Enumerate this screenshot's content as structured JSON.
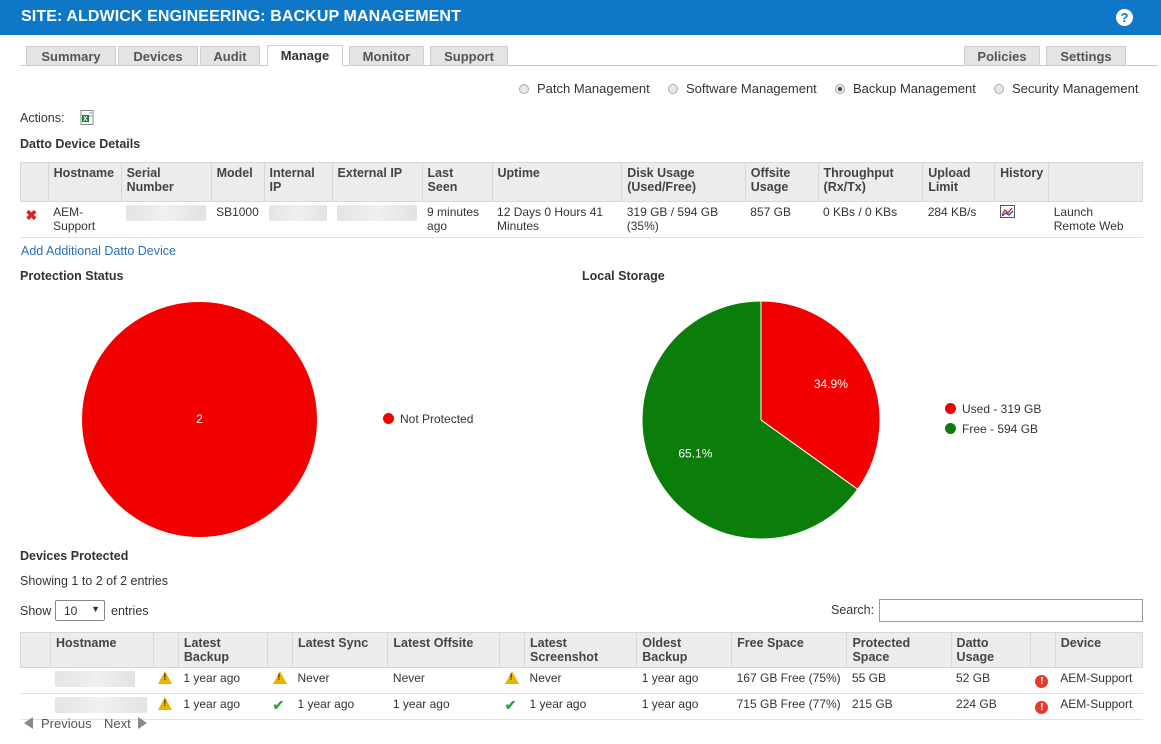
{
  "header": {
    "title": "SITE: ALDWICK ENGINEERING: BACKUP MANAGEMENT",
    "help": "?"
  },
  "tabs": [
    "Summary",
    "Devices",
    "Audit",
    "Manage",
    "Monitor",
    "Support"
  ],
  "right_tabs": [
    "Policies",
    "Settings"
  ],
  "active_tab": "Manage",
  "management_options": [
    "Patch Management",
    "Software Management",
    "Backup Management",
    "Security Management"
  ],
  "selected_management": "Backup Management",
  "actions_label": "Actions:",
  "datto_section": {
    "title": "Datto Device Details",
    "columns": [
      "Hostname",
      "Serial Number",
      "Model",
      "Internal IP",
      "External IP",
      "Last Seen",
      "Uptime",
      "Disk Usage (Used/Free)",
      "Offsite Usage",
      "Throughput (Rx/Tx)",
      "Upload Limit",
      "History"
    ],
    "row": {
      "hostname": "AEM-Support",
      "model": "SB1000",
      "last_seen": "9 minutes ago",
      "uptime": "12 Days 0 Hours 41 Minutes",
      "disk_usage": "319 GB / 594 GB (35%)",
      "offsite_usage": "857 GB",
      "throughput": "0 KBs / 0 KBs",
      "upload_limit": "284 KB/s",
      "action_link": "Launch Remote Web"
    },
    "add_link": "Add Additional Datto Device"
  },
  "protection_status": {
    "title": "Protection Status",
    "center_value": "2",
    "legend": "Not Protected",
    "color": "#f20000"
  },
  "local_storage": {
    "title": "Local Storage",
    "used_pct_label": "34.9%",
    "free_pct_label": "65.1%",
    "legend_used": "Used - 319 GB",
    "legend_free": "Free - 594 GB",
    "used_color": "#f20000",
    "free_color": "#0a7d0a"
  },
  "chart_data": {
    "type": "pie",
    "title": "Local Storage",
    "categories": [
      "Used - 319 GB",
      "Free - 594 GB"
    ],
    "values": [
      34.9,
      65.1
    ]
  },
  "devices_protected": {
    "title": "Devices Protected",
    "showing": "Showing 1 to 2 of 2 entries",
    "show_label": "Show",
    "show_value": "10",
    "entries_label": "entries",
    "search_label": "Search:",
    "columns": [
      "Hostname",
      "Latest Backup",
      "Latest Sync",
      "Latest Offsite",
      "Latest Screenshot",
      "Oldest Backup",
      "Free Space",
      "Protected Space",
      "Datto Usage",
      "Device"
    ],
    "rows": [
      {
        "latest_backup": "1 year ago",
        "latest_sync": "Never",
        "latest_offsite": "Never",
        "latest_screenshot": "Never",
        "oldest_backup": "1 year ago",
        "free_space": "167 GB Free (75%)",
        "protected_space": "55 GB",
        "datto_usage": "52 GB",
        "device": "AEM-Support"
      },
      {
        "latest_backup": "1 year ago",
        "latest_sync": "1 year ago",
        "latest_offsite": "1 year ago",
        "latest_screenshot": "1 year ago",
        "oldest_backup": "1 year ago",
        "free_space": "715 GB Free (77%)",
        "protected_space": "215 GB",
        "datto_usage": "224 GB",
        "device": "AEM-Support"
      }
    ],
    "previous": "Previous",
    "next": "Next"
  }
}
